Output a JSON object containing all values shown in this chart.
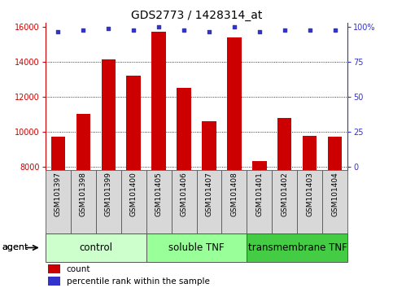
{
  "title": "GDS2773 / 1428314_at",
  "samples": [
    "GSM101397",
    "GSM101398",
    "GSM101399",
    "GSM101400",
    "GSM101405",
    "GSM101406",
    "GSM101407",
    "GSM101408",
    "GSM101401",
    "GSM101402",
    "GSM101403",
    "GSM101404"
  ],
  "counts": [
    9700,
    11000,
    14100,
    13200,
    15700,
    12500,
    10600,
    15400,
    8300,
    10750,
    9750,
    9700
  ],
  "percentiles": [
    97,
    98,
    99,
    98,
    100,
    98,
    97,
    100,
    97,
    98,
    98,
    98
  ],
  "ylim_left": [
    7800,
    16200
  ],
  "yticks_left": [
    8000,
    10000,
    12000,
    14000,
    16000
  ],
  "ylim_right": [
    -2.0,
    103
  ],
  "yticks_right": [
    0,
    25,
    50,
    75,
    100
  ],
  "bar_color": "#cc0000",
  "dot_color": "#3333cc",
  "bar_width": 0.55,
  "groups": [
    {
      "label": "control",
      "start": 0,
      "end": 4,
      "color": "#ccffcc"
    },
    {
      "label": "soluble TNF",
      "start": 4,
      "end": 8,
      "color": "#99ff99"
    },
    {
      "label": "transmembrane TNF",
      "start": 8,
      "end": 12,
      "color": "#44cc44"
    }
  ],
  "sample_box_color": "#d8d8d8",
  "bar_bottom": 7800,
  "tick_label_color": "#cc0000",
  "right_axis_color": "#3333cc",
  "title_fontsize": 10,
  "sample_fontsize": 6.5,
  "group_label_fontsize": 8.5,
  "legend_fontsize": 7.5,
  "agent_fontsize": 8
}
